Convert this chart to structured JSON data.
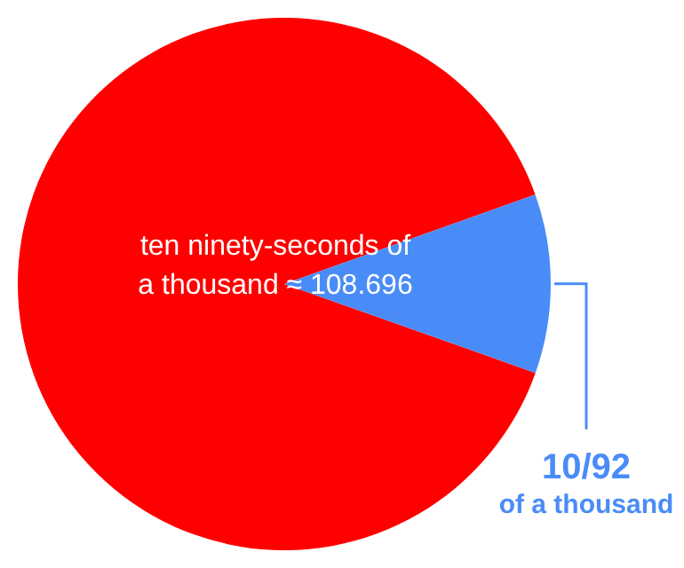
{
  "chart_data": {
    "type": "pie",
    "categories": [
      null,
      "10/92 of a thousand"
    ],
    "values": [
      89.13,
      10.87
    ],
    "colors": [
      "#ff0000",
      "#4a8cf7"
    ],
    "annotations": [
      "ten ninety-seconds of a thousand ≈ 108.696"
    ],
    "legend": false
  }
}
